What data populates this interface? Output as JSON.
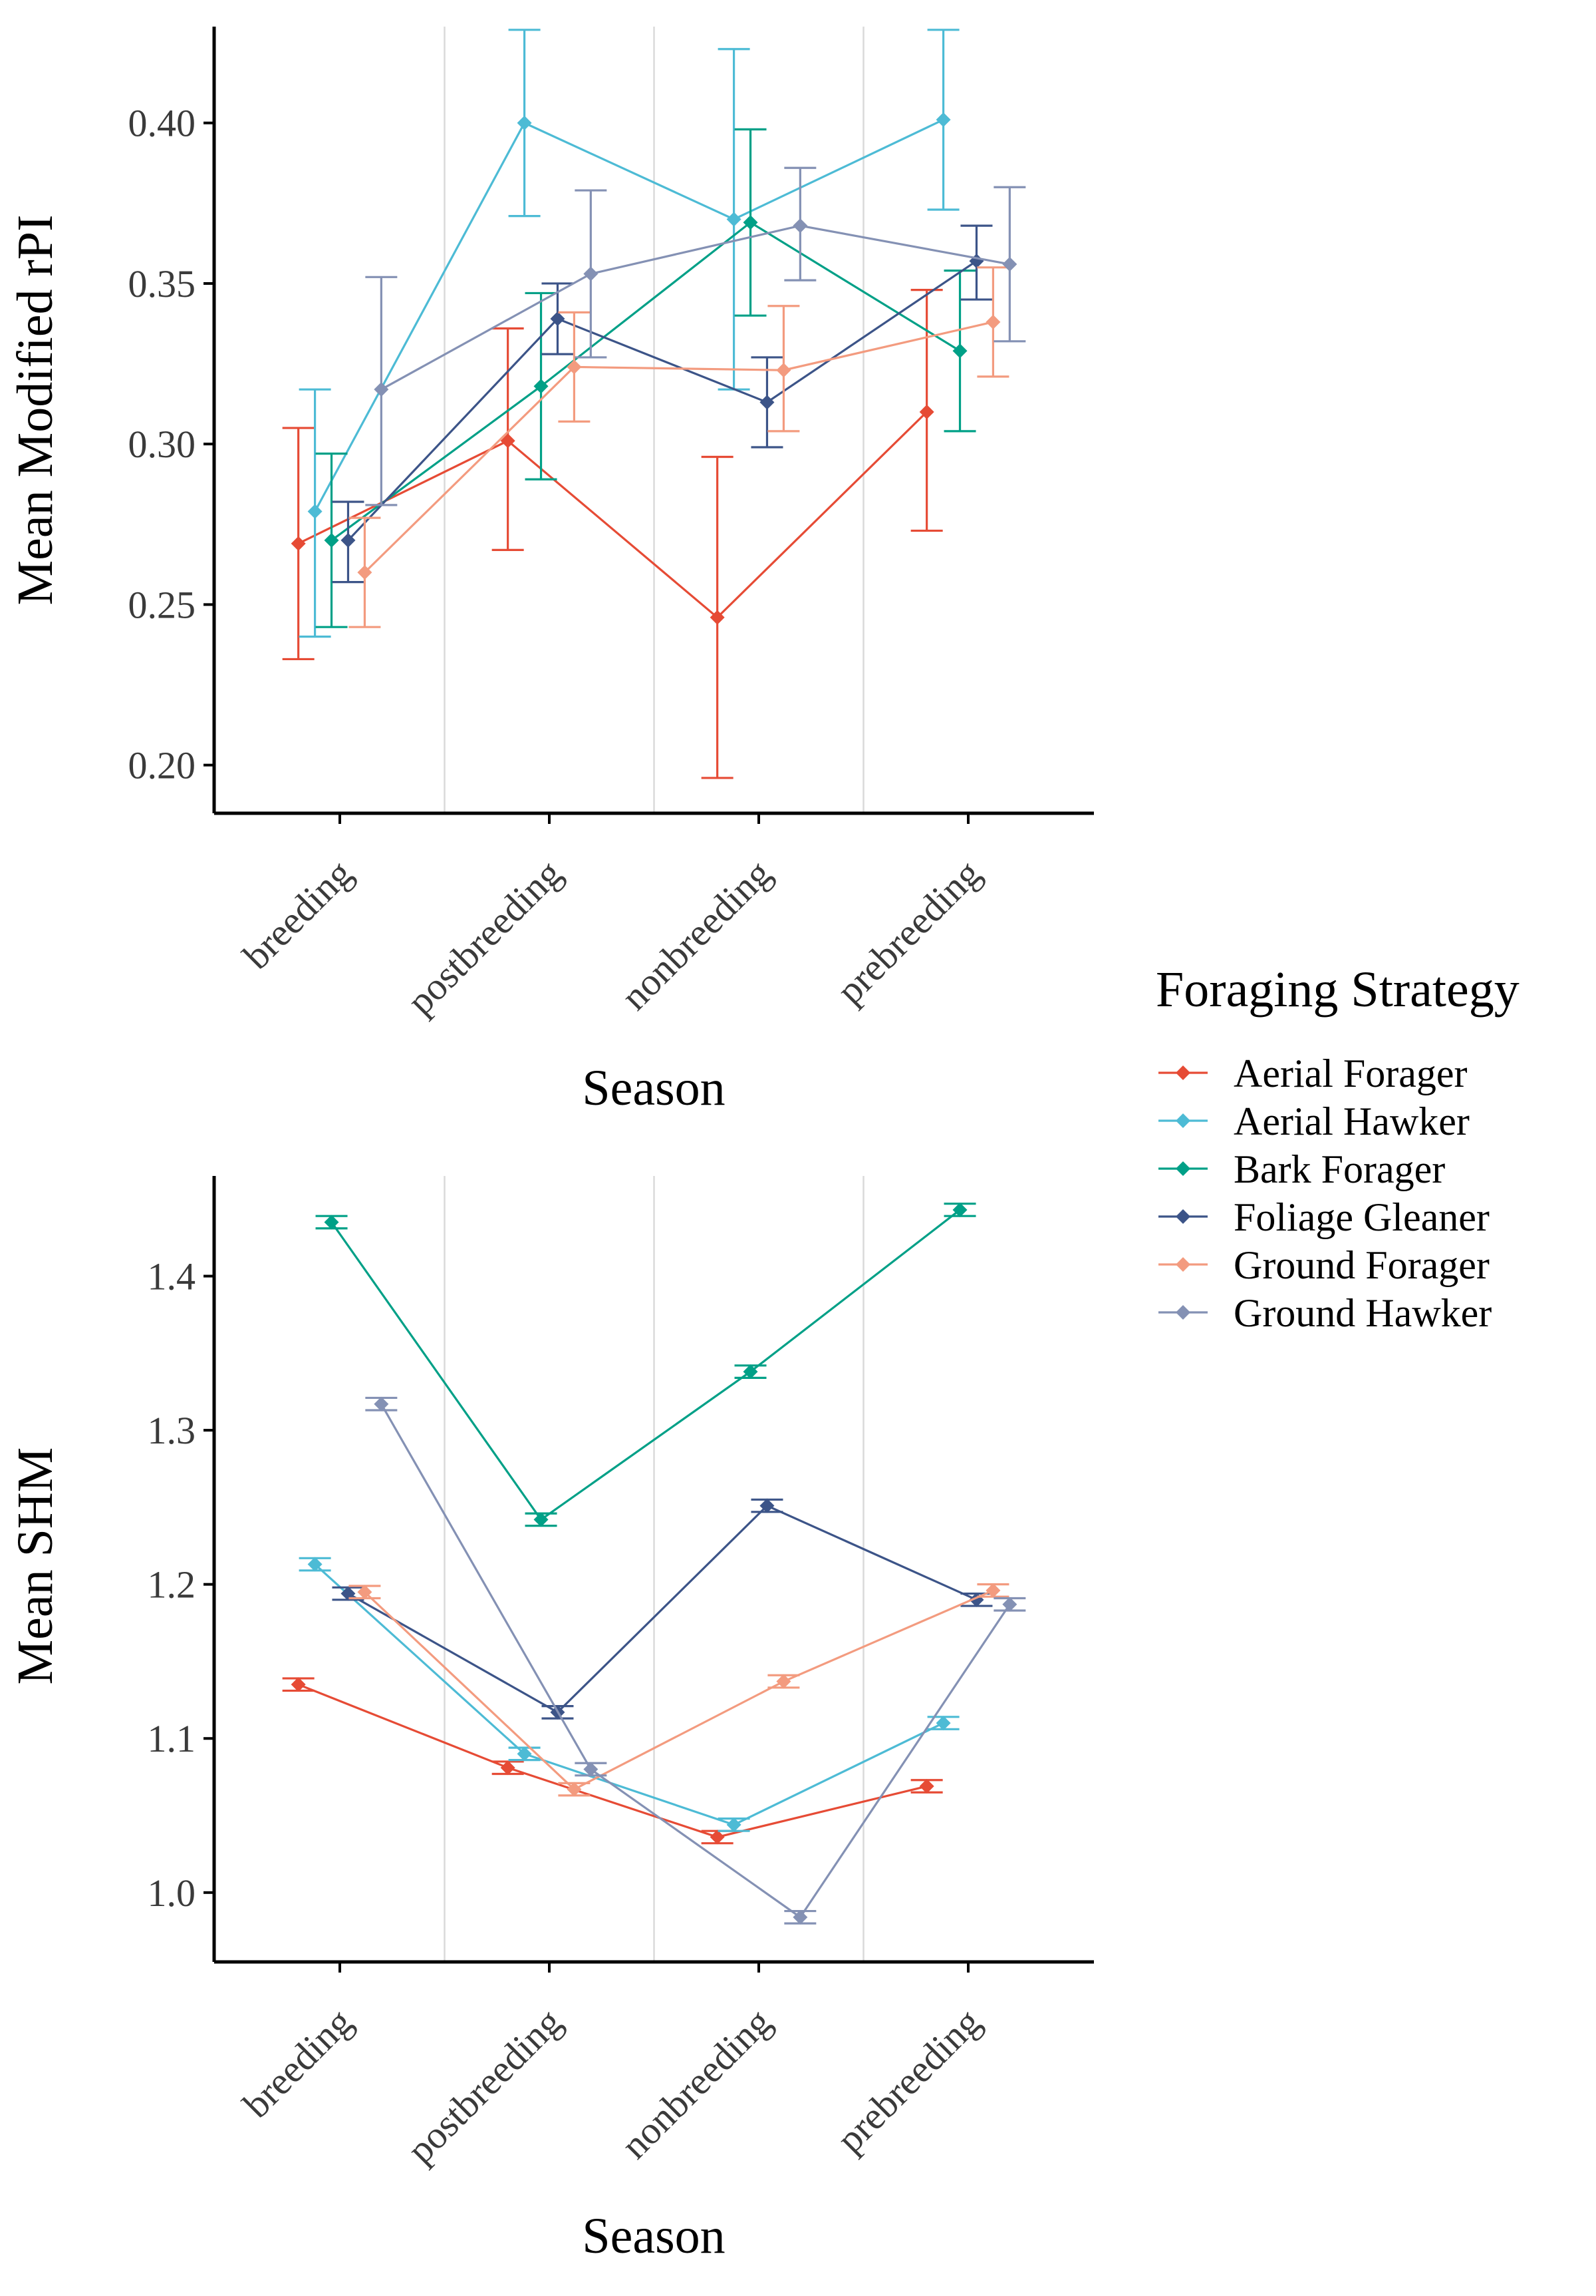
{
  "legend": {
    "title": "Foraging Strategy",
    "entries": [
      {
        "label": "Aerial Forager",
        "color": "#E64B35"
      },
      {
        "label": "Aerial Hawker",
        "color": "#4DBBD5"
      },
      {
        "label": "Bark Forager",
        "color": "#00A087"
      },
      {
        "label": "Foliage Gleaner",
        "color": "#3C5488"
      },
      {
        "label": "Ground Forager",
        "color": "#F39B7F"
      },
      {
        "label": "Ground Hawker",
        "color": "#8491B4"
      }
    ]
  },
  "chart_data": [
    {
      "type": "line",
      "xlabel": "Season",
      "ylabel": "Mean Modified rPI",
      "categories": [
        "breeding",
        "postbreeding",
        "nonbreeding",
        "prebreeding"
      ],
      "ylim": [
        0.185,
        0.43
      ],
      "yticks": [
        0.2,
        0.25,
        0.3,
        0.35,
        0.4
      ],
      "ytick_labels": [
        "0.20",
        "0.25",
        "0.30",
        "0.35",
        "0.40"
      ],
      "grid": "vertical minor lines between categories",
      "error_bars": true,
      "series": [
        {
          "name": "Aerial Forager",
          "values": [
            0.269,
            0.301,
            0.246,
            0.31
          ],
          "lower": [
            0.233,
            0.267,
            0.196,
            0.273
          ],
          "upper": [
            0.305,
            0.336,
            0.296,
            0.348
          ]
        },
        {
          "name": "Aerial Hawker",
          "values": [
            0.279,
            0.4,
            0.37,
            0.401
          ],
          "lower": [
            0.24,
            0.371,
            0.317,
            0.373
          ],
          "upper": [
            0.317,
            0.429,
            0.423,
            0.429
          ]
        },
        {
          "name": "Bark Forager",
          "values": [
            0.27,
            0.318,
            0.369,
            0.329
          ],
          "lower": [
            0.243,
            0.289,
            0.34,
            0.304
          ],
          "upper": [
            0.297,
            0.347,
            0.398,
            0.354
          ]
        },
        {
          "name": "Foliage Gleaner",
          "values": [
            0.27,
            0.339,
            0.313,
            0.357
          ],
          "lower": [
            0.257,
            0.328,
            0.299,
            0.345
          ],
          "upper": [
            0.282,
            0.35,
            0.327,
            0.368
          ]
        },
        {
          "name": "Ground Forager",
          "values": [
            0.26,
            0.324,
            0.323,
            0.338
          ],
          "lower": [
            0.243,
            0.307,
            0.304,
            0.321
          ],
          "upper": [
            0.277,
            0.341,
            0.343,
            0.355
          ]
        },
        {
          "name": "Ground Hawker",
          "values": [
            0.317,
            0.353,
            0.368,
            0.356
          ],
          "lower": [
            0.281,
            0.327,
            0.351,
            0.332
          ],
          "upper": [
            0.352,
            0.379,
            0.386,
            0.38
          ]
        }
      ]
    },
    {
      "type": "line",
      "xlabel": "Season",
      "ylabel": "Mean SHM",
      "categories": [
        "breeding",
        "postbreeding",
        "nonbreeding",
        "prebreeding"
      ],
      "ylim": [
        0.955,
        1.465
      ],
      "yticks": [
        1.0,
        1.1,
        1.2,
        1.3,
        1.4
      ],
      "ytick_labels": [
        "1.0",
        "1.1",
        "1.2",
        "1.3",
        "1.4"
      ],
      "grid": "vertical minor lines between categories",
      "error_bars": true,
      "series": [
        {
          "name": "Aerial Forager",
          "values": [
            1.135,
            1.081,
            1.036,
            1.069
          ],
          "lower": [
            1.131,
            1.077,
            1.032,
            1.065
          ],
          "upper": [
            1.139,
            1.085,
            1.04,
            1.073
          ]
        },
        {
          "name": "Aerial Hawker",
          "values": [
            1.213,
            1.09,
            1.044,
            1.11
          ],
          "lower": [
            1.209,
            1.086,
            1.04,
            1.106
          ],
          "upper": [
            1.217,
            1.094,
            1.048,
            1.114
          ]
        },
        {
          "name": "Bark Forager",
          "values": [
            1.435,
            1.242,
            1.338,
            1.443
          ],
          "lower": [
            1.431,
            1.238,
            1.334,
            1.439
          ],
          "upper": [
            1.439,
            1.246,
            1.342,
            1.447
          ]
        },
        {
          "name": "Foliage Gleaner",
          "values": [
            1.194,
            1.117,
            1.251,
            1.19
          ],
          "lower": [
            1.19,
            1.113,
            1.247,
            1.186
          ],
          "upper": [
            1.198,
            1.121,
            1.255,
            1.194
          ]
        },
        {
          "name": "Ground Forager",
          "values": [
            1.195,
            1.067,
            1.137,
            1.196
          ],
          "lower": [
            1.191,
            1.063,
            1.133,
            1.192
          ],
          "upper": [
            1.199,
            1.071,
            1.141,
            1.2
          ]
        },
        {
          "name": "Ground Hawker",
          "values": [
            1.317,
            1.08,
            0.984,
            1.187
          ],
          "lower": [
            1.313,
            1.076,
            0.98,
            1.183
          ],
          "upper": [
            1.321,
            1.084,
            0.988,
            1.191
          ]
        }
      ]
    }
  ]
}
